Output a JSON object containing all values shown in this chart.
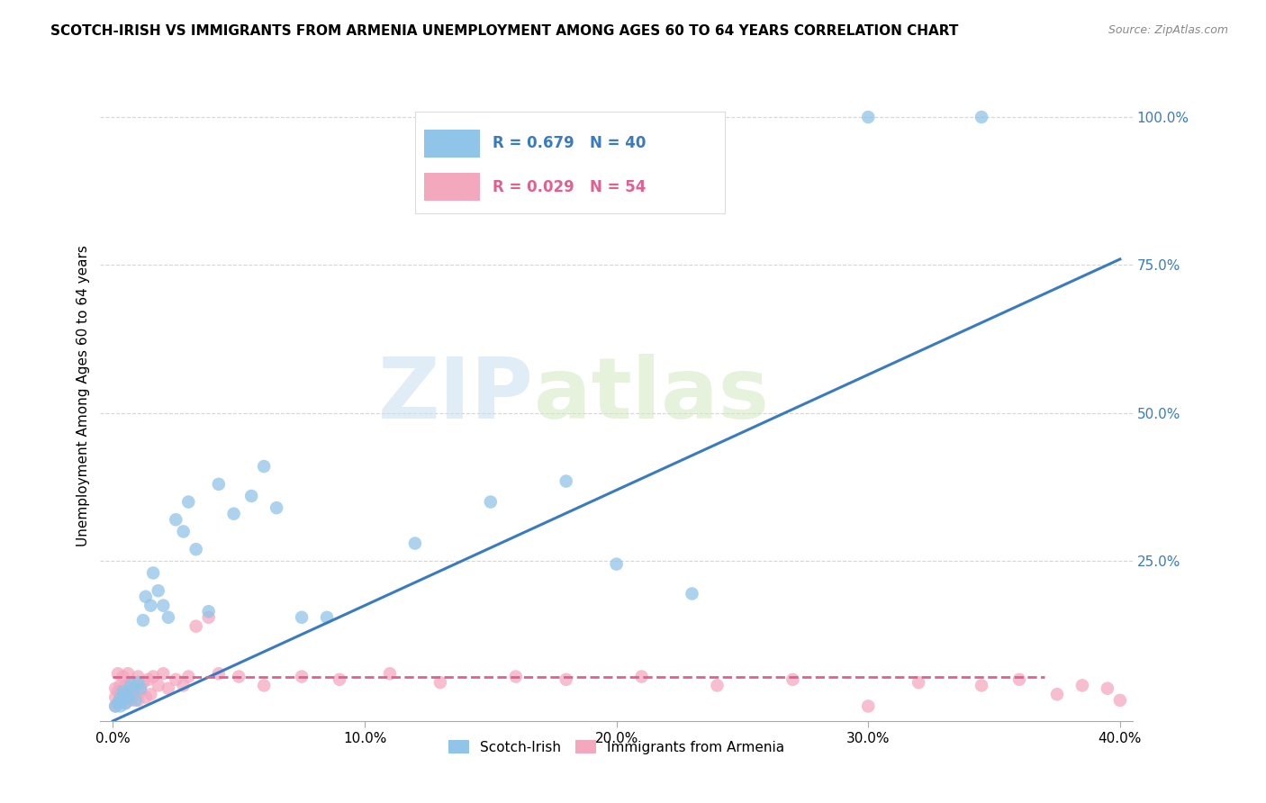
{
  "title": "SCOTCH-IRISH VS IMMIGRANTS FROM ARMENIA UNEMPLOYMENT AMONG AGES 60 TO 64 YEARS CORRELATION CHART",
  "source": "Source: ZipAtlas.com",
  "ylabel": "Unemployment Among Ages 60 to 64 years",
  "xlabel_ticks": [
    "0.0%",
    "10.0%",
    "20.0%",
    "30.0%",
    "40.0%"
  ],
  "ylabel_ticks": [
    "25.0%",
    "50.0%",
    "75.0%",
    "100.0%"
  ],
  "ytick_vals": [
    0.25,
    0.5,
    0.75,
    1.0
  ],
  "xlim": [
    -0.005,
    0.405
  ],
  "ylim": [
    -0.02,
    1.08
  ],
  "legend_label1": "Scotch-Irish",
  "legend_label2": "Immigrants from Armenia",
  "R1": 0.679,
  "N1": 40,
  "R2": 0.029,
  "N2": 54,
  "color_blue": "#90c4e8",
  "color_pink": "#f4a8be",
  "color_blue_line": "#3a7bbf",
  "color_pink_line": "#e06090",
  "watermark_zip": "ZIP",
  "watermark_atlas": "atlas",
  "scotch_irish_x": [
    0.001,
    0.002,
    0.003,
    0.003,
    0.004,
    0.004,
    0.005,
    0.005,
    0.006,
    0.007,
    0.008,
    0.009,
    0.01,
    0.011,
    0.012,
    0.013,
    0.015,
    0.016,
    0.018,
    0.02,
    0.022,
    0.025,
    0.028,
    0.03,
    0.033,
    0.038,
    0.042,
    0.048,
    0.055,
    0.06,
    0.065,
    0.075,
    0.085,
    0.12,
    0.15,
    0.18,
    0.2,
    0.23,
    0.3,
    0.345
  ],
  "scotch_irish_y": [
    0.005,
    0.01,
    0.005,
    0.02,
    0.015,
    0.03,
    0.01,
    0.025,
    0.02,
    0.04,
    0.035,
    0.015,
    0.045,
    0.035,
    0.15,
    0.19,
    0.175,
    0.23,
    0.2,
    0.175,
    0.155,
    0.32,
    0.3,
    0.35,
    0.27,
    0.165,
    0.38,
    0.33,
    0.36,
    0.41,
    0.34,
    0.155,
    0.155,
    0.28,
    0.35,
    0.385,
    0.245,
    0.195,
    1.0,
    1.0
  ],
  "armenia_x": [
    0.001,
    0.001,
    0.001,
    0.002,
    0.002,
    0.002,
    0.003,
    0.003,
    0.004,
    0.004,
    0.005,
    0.005,
    0.006,
    0.006,
    0.007,
    0.007,
    0.008,
    0.009,
    0.01,
    0.01,
    0.011,
    0.012,
    0.013,
    0.014,
    0.015,
    0.016,
    0.018,
    0.02,
    0.022,
    0.025,
    0.028,
    0.03,
    0.033,
    0.038,
    0.042,
    0.05,
    0.06,
    0.075,
    0.09,
    0.11,
    0.13,
    0.16,
    0.18,
    0.21,
    0.24,
    0.27,
    0.3,
    0.32,
    0.345,
    0.36,
    0.375,
    0.385,
    0.395,
    0.4
  ],
  "armenia_y": [
    0.005,
    0.02,
    0.035,
    0.01,
    0.03,
    0.06,
    0.015,
    0.04,
    0.025,
    0.055,
    0.01,
    0.04,
    0.02,
    0.06,
    0.015,
    0.045,
    0.025,
    0.035,
    0.015,
    0.055,
    0.03,
    0.045,
    0.02,
    0.05,
    0.025,
    0.055,
    0.04,
    0.06,
    0.035,
    0.05,
    0.04,
    0.055,
    0.14,
    0.155,
    0.06,
    0.055,
    0.04,
    0.055,
    0.05,
    0.06,
    0.045,
    0.055,
    0.05,
    0.055,
    0.04,
    0.05,
    0.005,
    0.045,
    0.04,
    0.05,
    0.025,
    0.04,
    0.035,
    0.015
  ],
  "blue_line_x": [
    0.0,
    0.4
  ],
  "blue_line_y": [
    -0.02,
    0.76
  ],
  "pink_line_x": [
    0.0,
    0.37
  ],
  "pink_line_y": [
    0.055,
    0.055
  ]
}
